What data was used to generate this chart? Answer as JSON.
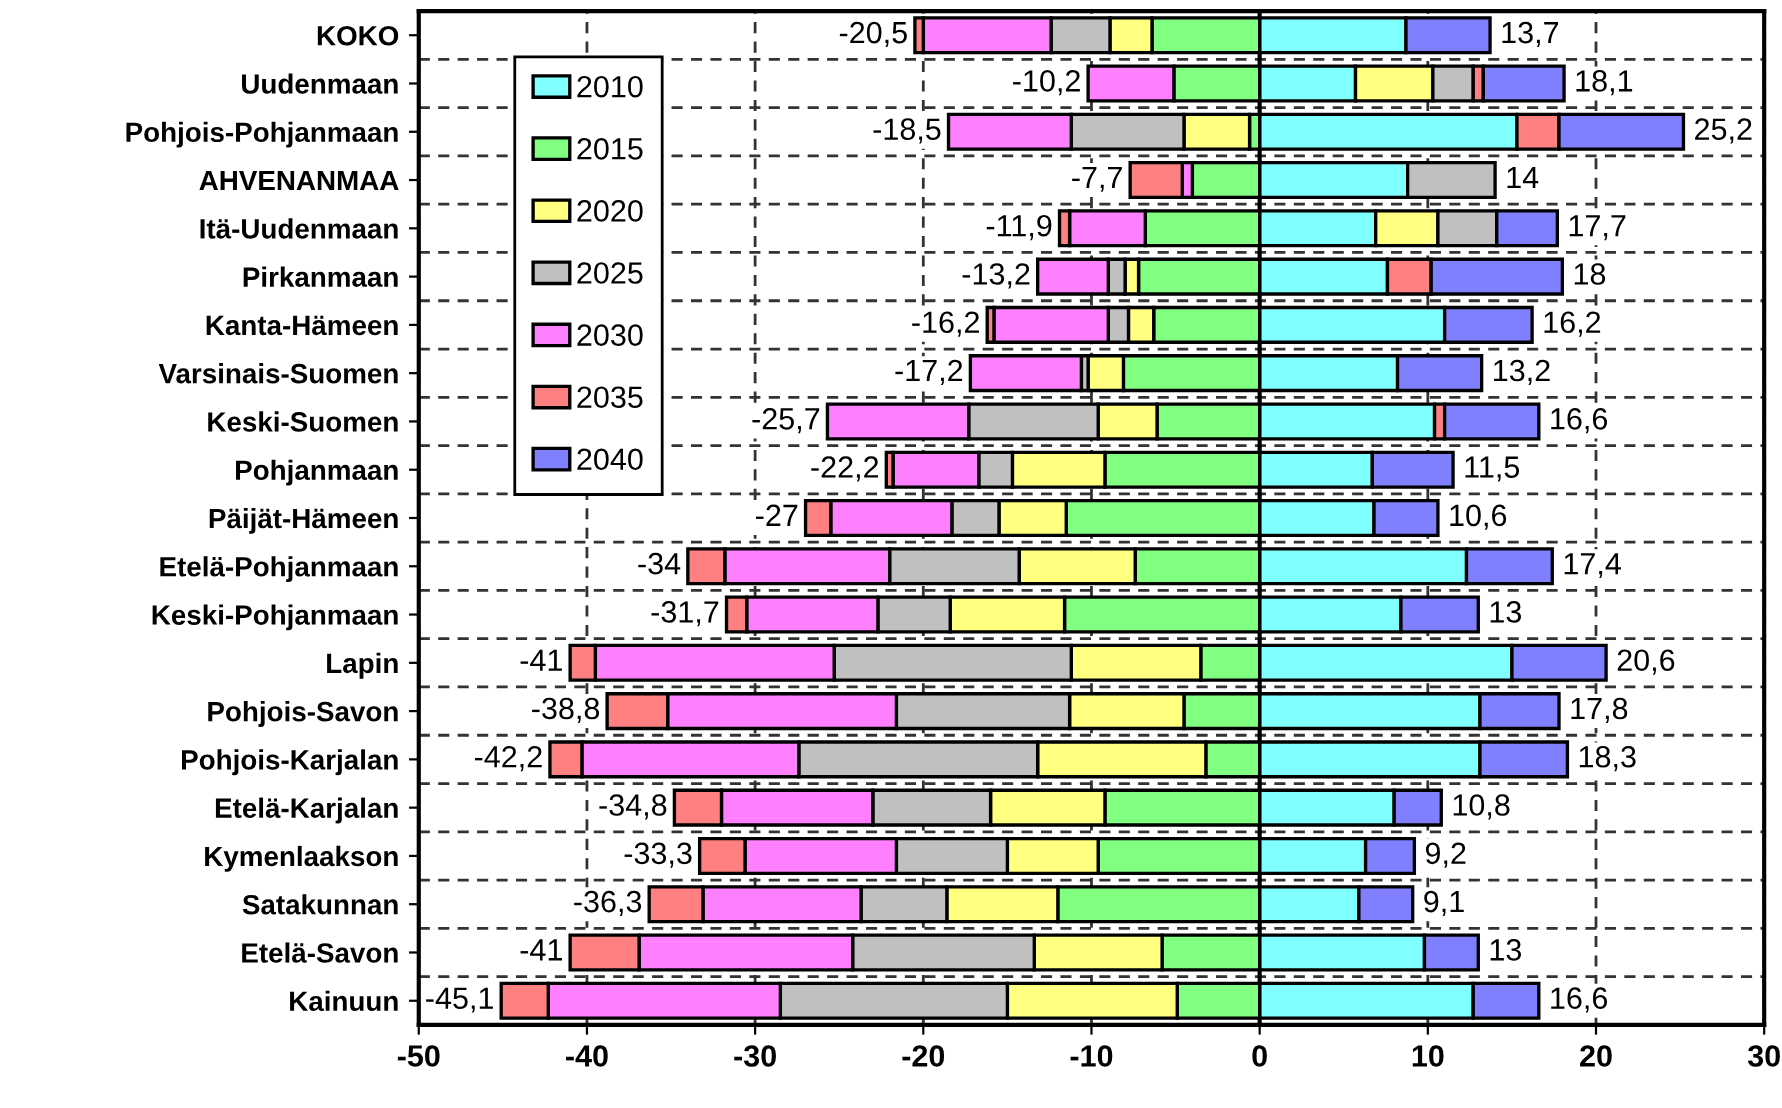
{
  "chart_data": {
    "type": "bar",
    "orientation": "horizontal",
    "stacked": true,
    "categories": [
      "KOKO",
      "Uudenmaan",
      "Pohjois-Pohjanmaan",
      "AHVENANMAA",
      "Itä-Uudenmaan",
      "Pirkanmaan",
      "Kanta-Hämeen",
      "Varsinais-Suomen",
      "Keski-Suomen",
      "Pohjanmaan",
      "Päijät-Hämeen",
      "Etelä-Pohjanmaan",
      "Keski-Pohjanmaan",
      "Lapin",
      "Pohjois-Savon",
      "Pohjois-Karjalan",
      "Etelä-Karjalan",
      "Kymenlaakson",
      "Satakunnan",
      "Etelä-Savon",
      "Kainuun"
    ],
    "series": [
      {
        "name": "2010",
        "color": "#80ffff",
        "values": [
          8.7,
          5.7,
          15.3,
          8.8,
          6.9,
          7.6,
          11.0,
          8.2,
          10.4,
          6.7,
          6.8,
          12.3,
          8.4,
          15.0,
          13.1,
          13.1,
          8.0,
          6.3,
          5.9,
          9.8,
          12.7
        ]
      },
      {
        "name": "2015",
        "color": "#80ff80",
        "values": [
          -6.4,
          -5.1,
          -0.6,
          -4.0,
          -6.8,
          -7.2,
          -6.3,
          -8.1,
          -6.1,
          -9.2,
          -11.5,
          -7.4,
          -11.6,
          -3.5,
          -4.5,
          -3.2,
          -9.2,
          -9.6,
          -12.0,
          -5.8,
          -4.9
        ]
      },
      {
        "name": "2020",
        "color": "#ffff80",
        "values": [
          -2.5,
          4.6,
          -3.9,
          null,
          3.7,
          -0.8,
          -1.5,
          -2.1,
          -3.5,
          -5.5,
          -4.0,
          -6.9,
          -6.8,
          -7.7,
          -6.8,
          -10.0,
          -6.8,
          -5.4,
          -6.6,
          -7.6,
          -10.1
        ]
      },
      {
        "name": "2025",
        "color": "#c0c0c0",
        "values": [
          -3.5,
          2.4,
          -6.7,
          5.2,
          3.5,
          -1.0,
          -1.2,
          -0.4,
          -7.7,
          -2.0,
          -2.8,
          -7.7,
          -4.3,
          -14.1,
          -10.3,
          -14.2,
          -7.0,
          -6.6,
          -5.1,
          -10.8,
          -13.5
        ]
      },
      {
        "name": "2030",
        "color": "#ff80ff",
        "values": [
          -7.6,
          -5.1,
          -7.3,
          -0.6,
          -4.5,
          -4.2,
          -6.8,
          -6.6,
          -8.4,
          -5.1,
          -7.2,
          -9.8,
          -7.8,
          -14.2,
          -13.6,
          -12.9,
          -9.0,
          -9.0,
          -9.4,
          -12.7,
          -13.8
        ]
      },
      {
        "name": "2035",
        "color": "#ff8080",
        "values": [
          -0.5,
          0.6,
          2.5,
          -3.1,
          -0.6,
          2.6,
          -0.4,
          null,
          0.6,
          -0.4,
          -1.5,
          -2.2,
          -1.2,
          -1.5,
          -3.6,
          -1.9,
          -2.8,
          -2.7,
          -3.2,
          -4.1,
          -2.8
        ]
      },
      {
        "name": "2040",
        "color": "#8080ff",
        "values": [
          5.0,
          4.8,
          7.4,
          null,
          3.6,
          7.8,
          5.2,
          5.0,
          5.6,
          4.8,
          3.8,
          5.1,
          4.6,
          5.6,
          4.7,
          5.2,
          2.8,
          2.9,
          3.2,
          3.2,
          3.9
        ]
      }
    ],
    "xlim": [
      -50,
      30
    ],
    "xticks": [
      -50,
      -40,
      -30,
      -20,
      -10,
      0,
      10,
      20,
      30
    ],
    "grid": true,
    "line_style": "dashed",
    "legend": "top left",
    "annotations": [
      {
        "text": "-20,5",
        "x": -20.5,
        "y": "KOKO"
      },
      {
        "text": "13,7",
        "x": 13.7,
        "y": "KOKO"
      },
      {
        "text": "-10,2",
        "x": -10.2,
        "y": "Uudenmaan"
      },
      {
        "text": "18,1",
        "x": 18.1,
        "y": "Uudenmaan"
      },
      {
        "text": "-18,5",
        "x": -18.5,
        "y": "Pohjois-Pohjanmaan"
      },
      {
        "text": "25,2",
        "x": 25.2,
        "y": "Pohjois-Pohjanmaan"
      },
      {
        "text": "-7,7",
        "x": -7.7,
        "y": "AHVENANMAA"
      },
      {
        "text": "14",
        "x": 14,
        "y": "AHVENANMAA"
      },
      {
        "text": "-11,9",
        "x": -11.9,
        "y": "Itä-Uudenmaan"
      },
      {
        "text": "17,7",
        "x": 17.7,
        "y": "Itä-Uudenmaan"
      },
      {
        "text": "-13,2",
        "x": -13.2,
        "y": "Pirkanmaan"
      },
      {
        "text": "18",
        "x": 18,
        "y": "Pirkanmaan"
      },
      {
        "text": "-16,2",
        "x": -16.2,
        "y": "Kanta-Hämeen"
      },
      {
        "text": "16,2",
        "x": 16.2,
        "y": "Kanta-Hämeen"
      },
      {
        "text": "-17,2",
        "x": -17.2,
        "y": "Varsinais-Suomen"
      },
      {
        "text": "13,2",
        "x": 13.2,
        "y": "Varsinais-Suomen"
      },
      {
        "text": "-25,7",
        "x": -25.7,
        "y": "Keski-Suomen"
      },
      {
        "text": "16,6",
        "x": 16.6,
        "y": "Keski-Suomen"
      },
      {
        "text": "-22,2",
        "x": -22.2,
        "y": "Pohjanmaan"
      },
      {
        "text": "11,5",
        "x": 11.5,
        "y": "Pohjanmaan"
      },
      {
        "text": "-27",
        "x": -27,
        "y": "Päijät-Hämeen"
      },
      {
        "text": "10,6",
        "x": 10.6,
        "y": "Päijät-Hämeen"
      },
      {
        "text": "-34",
        "x": -34,
        "y": "Etelä-Pohjanmaan"
      },
      {
        "text": "17,4",
        "x": 17.4,
        "y": "Etelä-Pohjanmaan"
      },
      {
        "text": "-31,7",
        "x": -31.7,
        "y": "Keski-Pohjanmaan"
      },
      {
        "text": "13",
        "x": 13,
        "y": "Keski-Pohjanmaan"
      },
      {
        "text": "-41",
        "x": -41,
        "y": "Lapin"
      },
      {
        "text": "20,6",
        "x": 20.6,
        "y": "Lapin"
      },
      {
        "text": "-38,8",
        "x": -38.8,
        "y": "Pohjois-Savon"
      },
      {
        "text": "17,8",
        "x": 17.8,
        "y": "Pohjois-Savon"
      },
      {
        "text": "-42,2",
        "x": -42.2,
        "y": "Pohjois-Karjalan"
      },
      {
        "text": "18,3",
        "x": 18.3,
        "y": "Pohjois-Karjalan"
      },
      {
        "text": "-34,8",
        "x": -34.8,
        "y": "Etelä-Karjalan"
      },
      {
        "text": "10,8",
        "x": 10.8,
        "y": "Etelä-Karjalan"
      },
      {
        "text": "-33,3",
        "x": -33.3,
        "y": "Kymenlaakson"
      },
      {
        "text": "9,2",
        "x": 9.2,
        "y": "Kymenlaakson"
      },
      {
        "text": "-36,3",
        "x": -36.3,
        "y": "Satakunnan"
      },
      {
        "text": "9,1",
        "x": 9.1,
        "y": "Satakunnan"
      },
      {
        "text": "-41",
        "x": -41,
        "y": "Etelä-Savon"
      },
      {
        "text": "13",
        "x": 13,
        "y": "Etelä-Savon"
      },
      {
        "text": "-45,1",
        "x": -45.1,
        "y": "Kainuun"
      },
      {
        "text": "16,6",
        "x": 16.6,
        "y": "Kainuun"
      }
    ]
  }
}
